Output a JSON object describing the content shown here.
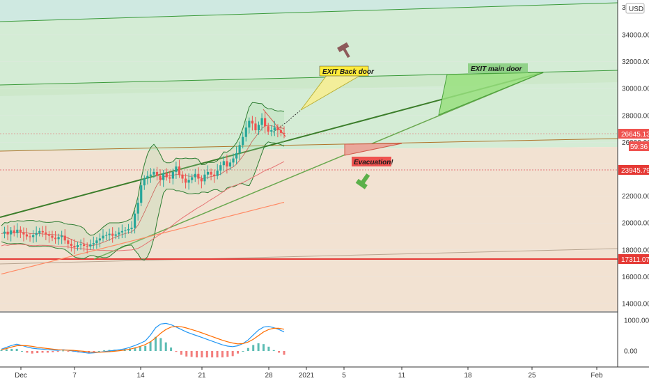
{
  "header": {
    "currency": "USD",
    "top_price_fragment": "3("
  },
  "annotations": {
    "exit_back": "EXIT Back door",
    "exit_main": "EXIT main door",
    "evacuation": "Evacuation!"
  },
  "price_tags": {
    "current": "26645.13",
    "countdown": "59:36",
    "level_mid": "23945.79",
    "level_low": "17311.07"
  },
  "colors": {
    "up_candle": "#26a69a",
    "down_candle": "#ef5350",
    "bands": "#2e7d32",
    "zone_green": "#c9e8c4",
    "zone_tan": "#f3e3d3",
    "trendline": "#3b7d2a",
    "support_red": "#e53935",
    "macd_line": "#2196f3",
    "signal_line": "#ff6d00",
    "exit_back_bg": "#ffeb3b",
    "exit_main_bg": "#7bc96f",
    "evacuation_bg": "#ef5350"
  },
  "chart_data": {
    "type": "candlestick",
    "price_axis": {
      "ticks": [
        14000,
        16000,
        18000,
        20000,
        22000,
        24000,
        26000,
        28000,
        30000,
        32000,
        34000
      ],
      "tick_labels": [
        "14000.00",
        "16000.00",
        "18000.00",
        "20000.00",
        "22000.00",
        "24000.00",
        "26000.00",
        "28000.00",
        "30000.00",
        "32000.00",
        "34000.00"
      ],
      "range": [
        13200,
        36000
      ]
    },
    "macd_axis": {
      "ticks": [
        0,
        1000
      ],
      "tick_labels": [
        "0.00",
        "1000.00"
      ],
      "range": [
        -600,
        1100
      ]
    },
    "x_axis": {
      "labels": [
        "Dec",
        "7",
        "14",
        "21",
        "28",
        "2021",
        "5",
        "11",
        "18",
        "25",
        "Feb"
      ],
      "dates": [
        "2020-12-01",
        "2020-12-07",
        "2020-12-14",
        "2020-12-21",
        "2020-12-28",
        "2021-01-01",
        "2021-01-05",
        "2021-01-11",
        "2021-01-18",
        "2021-01-25",
        "2021-02-01"
      ]
    },
    "candles_4h": [
      19200,
      19350,
      19150,
      19450,
      19250,
      19500,
      19300,
      19150,
      19000,
      18950,
      19100,
      19250,
      19400,
      19300,
      19150,
      19050,
      18900,
      18800,
      18950,
      19050,
      18700,
      18450,
      18300,
      18200,
      18350,
      18400,
      18300,
      18250,
      18400,
      18500,
      18700,
      18850,
      19050,
      19100,
      19200,
      19050,
      19150,
      19300,
      19400,
      19450,
      19550,
      19650,
      20700,
      21500,
      22800,
      23300,
      23500,
      23600,
      23800,
      23500,
      23200,
      23700,
      23400,
      23300,
      23800,
      24200,
      23600,
      23300,
      23000,
      23200,
      23400,
      23650,
      23300,
      23100,
      23600,
      23800,
      23600,
      23500,
      23900,
      24300,
      24600,
      24200,
      24500,
      24800,
      25200,
      25800,
      26400,
      27100,
      27600,
      27400,
      26900,
      27300,
      27800,
      27200,
      26800,
      26900,
      27100,
      26900,
      26700,
      26645
    ],
    "levels": [
      23945.79,
      17311.07,
      26645.13
    ],
    "horizontal_support": 17311.07,
    "trendlines_note": "ascending channel lines with 'EXIT Back door', 'EXIT main door' and 'Evacuation!' zones",
    "macd": {
      "macd_line": [
        60,
        120,
        180,
        220,
        180,
        130,
        90,
        70,
        60,
        40,
        30,
        20,
        40,
        20,
        0,
        -30,
        -50,
        -70,
        -60,
        -40,
        -20,
        0,
        20,
        40,
        70,
        120,
        180,
        250,
        330,
        520,
        760,
        880,
        900,
        860,
        780,
        700,
        620,
        560,
        500,
        440,
        380,
        320,
        260,
        200,
        160,
        140,
        170,
        240,
        360,
        520,
        680,
        780,
        800,
        760,
        700,
        620
      ],
      "signal_line": [
        40,
        80,
        130,
        170,
        180,
        170,
        150,
        120,
        100,
        80,
        60,
        40,
        30,
        25,
        20,
        5,
        -10,
        -30,
        -40,
        -40,
        -35,
        -25,
        -10,
        10,
        30,
        60,
        100,
        150,
        210,
        300,
        430,
        580,
        700,
        780,
        800,
        790,
        750,
        700,
        650,
        590,
        530,
        470,
        410,
        350,
        300,
        260,
        230,
        240,
        290,
        380,
        500,
        620,
        700,
        740,
        740,
        710
      ]
    }
  }
}
